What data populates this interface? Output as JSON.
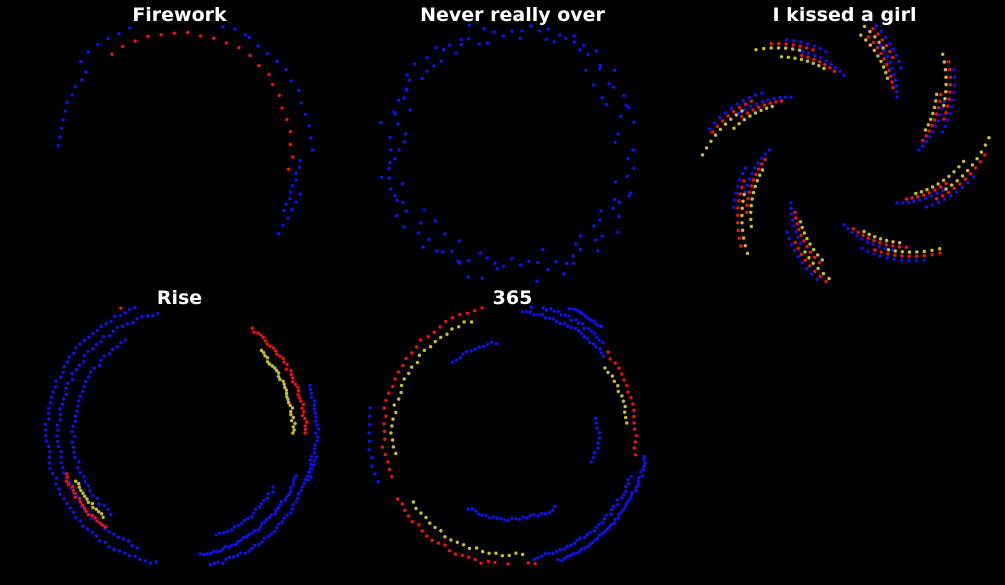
{
  "figure": {
    "background": "#000000",
    "grid": {
      "rows": 2,
      "cols": 3
    }
  },
  "colors": {
    "blue": "#1010f0",
    "red": "#ee1111",
    "yellow": "#c8be32",
    "title": "#ffffff"
  },
  "chart_data": [
    {
      "type": "scatter",
      "title": "Firework",
      "xlim": [
        -1.3,
        1.3
      ],
      "ylim": [
        -1.3,
        1.3
      ],
      "grid": false,
      "arcs": [
        {
          "color": "blue",
          "r": 1.05,
          "from": 140,
          "to": 178,
          "n": 10
        },
        {
          "color": "blue",
          "r": 1.15,
          "from": 60,
          "to": 138,
          "n": 16
        },
        {
          "color": "red",
          "r": 1.02,
          "from": 40,
          "to": 125,
          "n": 14
        },
        {
          "color": "red",
          "r": 0.98,
          "from": -10,
          "to": 35,
          "n": 8
        },
        {
          "color": "blue",
          "r": 1.15,
          "from": 0,
          "to": 58,
          "n": 12
        },
        {
          "color": "blue",
          "r": 1.05,
          "from": -30,
          "to": -5,
          "n": 9
        },
        {
          "color": "blue",
          "r": 1.12,
          "from": -40,
          "to": -20,
          "n": 6
        }
      ]
    },
    {
      "type": "scatter",
      "title": "Never really over",
      "xlim": [
        -1.3,
        1.3
      ],
      "ylim": [
        -1.3,
        1.3
      ],
      "grid": false,
      "arcs": [
        {
          "color": "blue",
          "r": 1.0,
          "from": 0,
          "to": 360,
          "n": 85,
          "jitter": 0.1
        },
        {
          "color": "blue",
          "r": 1.1,
          "from": 20,
          "to": 340,
          "n": 55,
          "jitter": 0.08
        }
      ]
    },
    {
      "type": "scatter",
      "title": "I kissed a girl",
      "xlim": [
        -1.3,
        1.3
      ],
      "ylim": [
        -1.3,
        1.3
      ],
      "grid": false,
      "spiral_arms": 8,
      "spiral_colors": [
        "blue",
        "red",
        "yellow"
      ]
    },
    {
      "type": "scatter",
      "title": "Rise",
      "xlim": [
        -1.3,
        1.3
      ],
      "ylim": [
        -1.3,
        1.3
      ],
      "grid": false,
      "arcs": [
        {
          "color": "blue",
          "r": 1.15,
          "from": 95,
          "to": 260,
          "n": 70
        },
        {
          "color": "blue",
          "r": 1.05,
          "from": 100,
          "to": 250,
          "n": 60
        },
        {
          "color": "blue",
          "r": 0.92,
          "from": 120,
          "to": 230,
          "n": 40
        },
        {
          "color": "blue",
          "r": 1.18,
          "from": 275,
          "to": 350,
          "n": 45
        },
        {
          "color": "blue",
          "r": 1.08,
          "from": 280,
          "to": 340,
          "n": 40
        },
        {
          "color": "blue",
          "r": 1.2,
          "from": -20,
          "to": 20,
          "n": 25
        },
        {
          "color": "blue",
          "r": 0.95,
          "from": 290,
          "to": 330,
          "n": 20
        },
        {
          "color": "red",
          "r": 1.1,
          "from": 0,
          "to": 55,
          "n": 35
        },
        {
          "color": "yellow",
          "r": 1.0,
          "from": 0,
          "to": 45,
          "n": 30
        },
        {
          "color": "red",
          "r": 1.05,
          "from": 200,
          "to": 232,
          "n": 20
        },
        {
          "color": "yellow",
          "r": 0.98,
          "from": 205,
          "to": 228,
          "n": 14
        },
        {
          "color": "red",
          "r": 1.2,
          "from": 95,
          "to": 115,
          "n": 5
        }
      ]
    },
    {
      "type": "scatter",
      "title": "365",
      "xlim": [
        -1.3,
        1.3
      ],
      "ylim": [
        -1.3,
        1.3
      ],
      "grid": false,
      "arcs": [
        {
          "color": "blue",
          "r": 1.2,
          "from": 50,
          "to": 100,
          "n": 40
        },
        {
          "color": "blue",
          "r": 1.12,
          "from": 45,
          "to": 95,
          "n": 30
        },
        {
          "color": "blue",
          "r": 1.05,
          "from": 40,
          "to": 85,
          "n": 25
        },
        {
          "color": "blue",
          "r": 1.18,
          "from": 290,
          "to": 350,
          "n": 45
        },
        {
          "color": "blue",
          "r": 1.1,
          "from": 280,
          "to": 340,
          "n": 35
        },
        {
          "color": "red",
          "r": 1.12,
          "from": 100,
          "to": 200,
          "n": 30
        },
        {
          "color": "yellow",
          "r": 1.04,
          "from": 110,
          "to": 190,
          "n": 25
        },
        {
          "color": "red",
          "r": 1.15,
          "from": 210,
          "to": 280,
          "n": 25
        },
        {
          "color": "yellow",
          "r": 1.06,
          "from": 215,
          "to": 275,
          "n": 20
        },
        {
          "color": "red",
          "r": 1.08,
          "from": -10,
          "to": 40,
          "n": 18
        },
        {
          "color": "yellow",
          "r": 1.0,
          "from": 5,
          "to": 35,
          "n": 12
        },
        {
          "color": "blue",
          "r": 0.75,
          "from": 240,
          "to": 300,
          "n": 25
        },
        {
          "color": "blue",
          "r": 0.8,
          "from": 100,
          "to": 130,
          "n": 12
        },
        {
          "color": "blue",
          "r": 0.75,
          "from": -20,
          "to": 10,
          "n": 10
        },
        {
          "color": "blue",
          "r": 1.25,
          "from": 170,
          "to": 200,
          "n": 10
        }
      ]
    }
  ]
}
